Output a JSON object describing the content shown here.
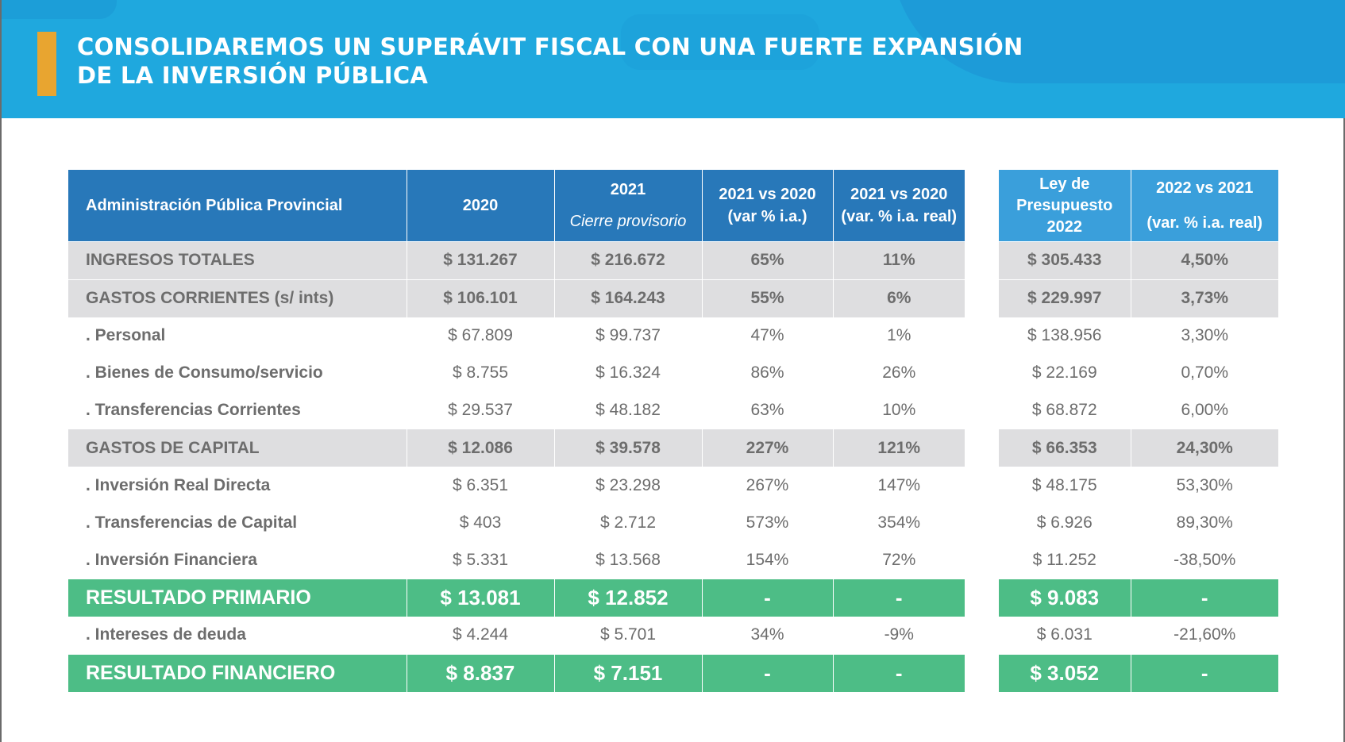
{
  "header": {
    "title_line1": "CONSOLIDAREMOS UN SUPERÁVIT FISCAL CON UNA FUERTE EXPANSIÓN",
    "title_line2": "DE LA INVERSIÓN PÚBLICA",
    "colors": {
      "banner": "#1fa8de",
      "accent": "#e8a530"
    }
  },
  "table": {
    "colors": {
      "header_main": "#2878b9",
      "header_side": "#3a9fdb",
      "row_grey": "#dedee0",
      "row_green": "#4dbd86",
      "text": "#6d6d6d"
    },
    "columns": {
      "label": "Administración Pública Provincial",
      "y2020": "2020",
      "y2021": "2021",
      "y2021_sub": "Cierre provisorio",
      "var_nominal_l1": "2021 vs 2020",
      "var_nominal_l2": "(var % i.a.)",
      "var_real_l1": "2021 vs 2020",
      "var_real_l2": "(var. % i.a. real)",
      "ley_l1": "Ley de",
      "ley_l2": "Presupuesto",
      "ley_l3": "2022",
      "var22_l1": "2022 vs 2021",
      "var22_l2": "(var. % i.a. real)"
    },
    "rows": [
      {
        "style": "grey",
        "label": "INGRESOS TOTALES",
        "y2020": "$ 131.267",
        "y2021": "$ 216.672",
        "var_nominal": "65%",
        "var_real": "11%",
        "ley2022": "$ 305.433",
        "var22": "4,50%"
      },
      {
        "style": "grey",
        "label": "GASTOS CORRIENTES (s/ ints)",
        "y2020": "$ 106.101",
        "y2021": "$ 164.243",
        "var_nominal": "55%",
        "var_real": "6%",
        "ley2022": "$ 229.997",
        "var22": "3,73%"
      },
      {
        "style": "plain",
        "label": ". Personal",
        "y2020": "$ 67.809",
        "y2021": "$ 99.737",
        "var_nominal": "47%",
        "var_real": "1%",
        "ley2022": "$ 138.956",
        "var22": "3,30%"
      },
      {
        "style": "plain",
        "label": ". Bienes de Consumo/servicio",
        "y2020": "$ 8.755",
        "y2021": "$ 16.324",
        "var_nominal": "86%",
        "var_real": "26%",
        "ley2022": "$ 22.169",
        "var22": "0,70%"
      },
      {
        "style": "plain",
        "label": ". Transferencias Corrientes",
        "y2020": "$ 29.537",
        "y2021": "$ 48.182",
        "var_nominal": "63%",
        "var_real": "10%",
        "ley2022": "$ 68.872",
        "var22": "6,00%"
      },
      {
        "style": "grey",
        "label": "GASTOS DE CAPITAL",
        "y2020": "$ 12.086",
        "y2021": "$ 39.578",
        "var_nominal": "227%",
        "var_real": "121%",
        "ley2022": "$ 66.353",
        "var22": "24,30%"
      },
      {
        "style": "plain",
        "label": ". Inversión Real Directa",
        "y2020": "$ 6.351",
        "y2021": "$ 23.298",
        "var_nominal": "267%",
        "var_real": "147%",
        "ley2022": "$ 48.175",
        "var22": "53,30%"
      },
      {
        "style": "plain",
        "label": ". Transferencias de Capital",
        "y2020": "$ 403",
        "y2021": "$ 2.712",
        "var_nominal": "573%",
        "var_real": "354%",
        "ley2022": "$ 6.926",
        "var22": "89,30%"
      },
      {
        "style": "plain",
        "label": ". Inversión Financiera",
        "y2020": "$ 5.331",
        "y2021": "$ 13.568",
        "var_nominal": "154%",
        "var_real": "72%",
        "ley2022": "$ 11.252",
        "var22": "-38,50%"
      },
      {
        "style": "green",
        "label": "RESULTADO PRIMARIO",
        "y2020": "$ 13.081",
        "y2021": "$ 12.852",
        "var_nominal": "-",
        "var_real": "-",
        "ley2022": "$ 9.083",
        "var22": "-"
      },
      {
        "style": "plain",
        "label": ". Intereses de deuda",
        "y2020": "$ 4.244",
        "y2021": "$ 5.701",
        "var_nominal": "34%",
        "var_real": "-9%",
        "ley2022": "$ 6.031",
        "var22": "-21,60%"
      },
      {
        "style": "green",
        "label": "RESULTADO FINANCIERO",
        "y2020": "$ 8.837",
        "y2021": "$ 7.151",
        "var_nominal": "-",
        "var_real": "-",
        "ley2022": "$ 3.052",
        "var22": "-"
      }
    ]
  }
}
